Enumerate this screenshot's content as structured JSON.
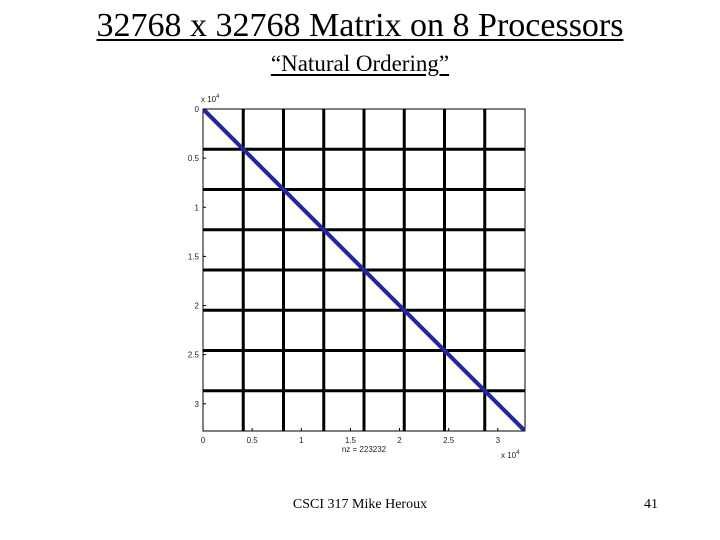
{
  "slide": {
    "title": "32768 x 32768 Matrix on 8 Processors",
    "subtitle": "“Natural Ordering”",
    "footer": "CSCI 317 Mike Heroux",
    "page_number": "41"
  },
  "plot": {
    "y_exponent_base": "x 10",
    "y_exponent_power": "4",
    "x_exponent_base": "x 10",
    "x_exponent_power": "4",
    "nz_label": "nz = 223232",
    "y_ticks": [
      {
        "value": 0,
        "label": "0"
      },
      {
        "value": 0.5,
        "label": "0.5"
      },
      {
        "value": 1,
        "label": "1"
      },
      {
        "value": 1.5,
        "label": "1.5"
      },
      {
        "value": 2,
        "label": "2"
      },
      {
        "value": 2.5,
        "label": "2.5"
      },
      {
        "value": 3,
        "label": "3"
      }
    ],
    "x_ticks": [
      {
        "value": 0,
        "label": "0"
      },
      {
        "value": 0.5,
        "label": "0.5"
      },
      {
        "value": 1,
        "label": "1"
      },
      {
        "value": 1.5,
        "label": "1.5"
      },
      {
        "value": 2,
        "label": "2"
      },
      {
        "value": 2.5,
        "label": "2.5"
      },
      {
        "value": 3,
        "label": "3"
      }
    ],
    "axis_max": 3.2768,
    "processors": 8,
    "band_offsets": [
      -0.0181,
      0,
      0.0181
    ],
    "band_color": "#1f2a9c",
    "grid_color": "#000000"
  }
}
